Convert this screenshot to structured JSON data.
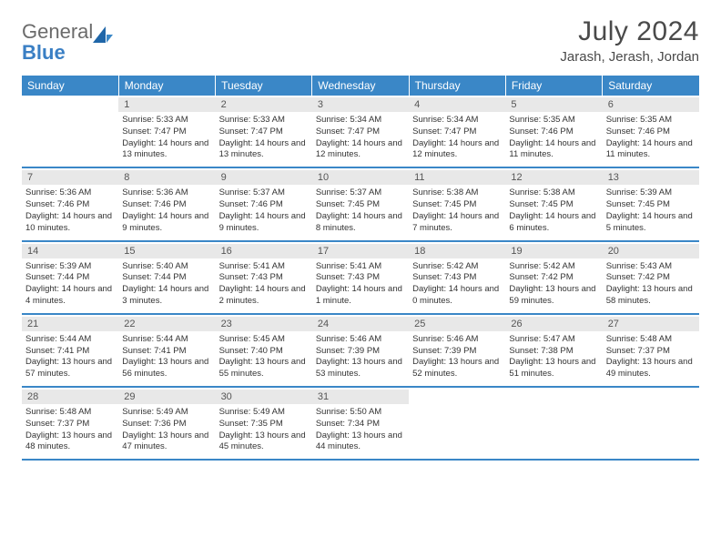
{
  "logo": {
    "textA": "General",
    "textB": "Blue"
  },
  "title": "July 2024",
  "location": "Jarash, Jerash, Jordan",
  "colors": {
    "header_bg": "#3a87c7",
    "daynum_bg": "#e8e8e8",
    "divider": "#3a87c7",
    "logo_gray": "#6b6b6b",
    "logo_blue": "#3a7fc4"
  },
  "weekdays": [
    "Sunday",
    "Monday",
    "Tuesday",
    "Wednesday",
    "Thursday",
    "Friday",
    "Saturday"
  ],
  "weeks": [
    [
      {
        "day": "",
        "sunrise": "",
        "sunset": "",
        "daylight": ""
      },
      {
        "day": "1",
        "sunrise": "Sunrise: 5:33 AM",
        "sunset": "Sunset: 7:47 PM",
        "daylight": "Daylight: 14 hours and 13 minutes."
      },
      {
        "day": "2",
        "sunrise": "Sunrise: 5:33 AM",
        "sunset": "Sunset: 7:47 PM",
        "daylight": "Daylight: 14 hours and 13 minutes."
      },
      {
        "day": "3",
        "sunrise": "Sunrise: 5:34 AM",
        "sunset": "Sunset: 7:47 PM",
        "daylight": "Daylight: 14 hours and 12 minutes."
      },
      {
        "day": "4",
        "sunrise": "Sunrise: 5:34 AM",
        "sunset": "Sunset: 7:47 PM",
        "daylight": "Daylight: 14 hours and 12 minutes."
      },
      {
        "day": "5",
        "sunrise": "Sunrise: 5:35 AM",
        "sunset": "Sunset: 7:46 PM",
        "daylight": "Daylight: 14 hours and 11 minutes."
      },
      {
        "day": "6",
        "sunrise": "Sunrise: 5:35 AM",
        "sunset": "Sunset: 7:46 PM",
        "daylight": "Daylight: 14 hours and 11 minutes."
      }
    ],
    [
      {
        "day": "7",
        "sunrise": "Sunrise: 5:36 AM",
        "sunset": "Sunset: 7:46 PM",
        "daylight": "Daylight: 14 hours and 10 minutes."
      },
      {
        "day": "8",
        "sunrise": "Sunrise: 5:36 AM",
        "sunset": "Sunset: 7:46 PM",
        "daylight": "Daylight: 14 hours and 9 minutes."
      },
      {
        "day": "9",
        "sunrise": "Sunrise: 5:37 AM",
        "sunset": "Sunset: 7:46 PM",
        "daylight": "Daylight: 14 hours and 9 minutes."
      },
      {
        "day": "10",
        "sunrise": "Sunrise: 5:37 AM",
        "sunset": "Sunset: 7:45 PM",
        "daylight": "Daylight: 14 hours and 8 minutes."
      },
      {
        "day": "11",
        "sunrise": "Sunrise: 5:38 AM",
        "sunset": "Sunset: 7:45 PM",
        "daylight": "Daylight: 14 hours and 7 minutes."
      },
      {
        "day": "12",
        "sunrise": "Sunrise: 5:38 AM",
        "sunset": "Sunset: 7:45 PM",
        "daylight": "Daylight: 14 hours and 6 minutes."
      },
      {
        "day": "13",
        "sunrise": "Sunrise: 5:39 AM",
        "sunset": "Sunset: 7:45 PM",
        "daylight": "Daylight: 14 hours and 5 minutes."
      }
    ],
    [
      {
        "day": "14",
        "sunrise": "Sunrise: 5:39 AM",
        "sunset": "Sunset: 7:44 PM",
        "daylight": "Daylight: 14 hours and 4 minutes."
      },
      {
        "day": "15",
        "sunrise": "Sunrise: 5:40 AM",
        "sunset": "Sunset: 7:44 PM",
        "daylight": "Daylight: 14 hours and 3 minutes."
      },
      {
        "day": "16",
        "sunrise": "Sunrise: 5:41 AM",
        "sunset": "Sunset: 7:43 PM",
        "daylight": "Daylight: 14 hours and 2 minutes."
      },
      {
        "day": "17",
        "sunrise": "Sunrise: 5:41 AM",
        "sunset": "Sunset: 7:43 PM",
        "daylight": "Daylight: 14 hours and 1 minute."
      },
      {
        "day": "18",
        "sunrise": "Sunrise: 5:42 AM",
        "sunset": "Sunset: 7:43 PM",
        "daylight": "Daylight: 14 hours and 0 minutes."
      },
      {
        "day": "19",
        "sunrise": "Sunrise: 5:42 AM",
        "sunset": "Sunset: 7:42 PM",
        "daylight": "Daylight: 13 hours and 59 minutes."
      },
      {
        "day": "20",
        "sunrise": "Sunrise: 5:43 AM",
        "sunset": "Sunset: 7:42 PM",
        "daylight": "Daylight: 13 hours and 58 minutes."
      }
    ],
    [
      {
        "day": "21",
        "sunrise": "Sunrise: 5:44 AM",
        "sunset": "Sunset: 7:41 PM",
        "daylight": "Daylight: 13 hours and 57 minutes."
      },
      {
        "day": "22",
        "sunrise": "Sunrise: 5:44 AM",
        "sunset": "Sunset: 7:41 PM",
        "daylight": "Daylight: 13 hours and 56 minutes."
      },
      {
        "day": "23",
        "sunrise": "Sunrise: 5:45 AM",
        "sunset": "Sunset: 7:40 PM",
        "daylight": "Daylight: 13 hours and 55 minutes."
      },
      {
        "day": "24",
        "sunrise": "Sunrise: 5:46 AM",
        "sunset": "Sunset: 7:39 PM",
        "daylight": "Daylight: 13 hours and 53 minutes."
      },
      {
        "day": "25",
        "sunrise": "Sunrise: 5:46 AM",
        "sunset": "Sunset: 7:39 PM",
        "daylight": "Daylight: 13 hours and 52 minutes."
      },
      {
        "day": "26",
        "sunrise": "Sunrise: 5:47 AM",
        "sunset": "Sunset: 7:38 PM",
        "daylight": "Daylight: 13 hours and 51 minutes."
      },
      {
        "day": "27",
        "sunrise": "Sunrise: 5:48 AM",
        "sunset": "Sunset: 7:37 PM",
        "daylight": "Daylight: 13 hours and 49 minutes."
      }
    ],
    [
      {
        "day": "28",
        "sunrise": "Sunrise: 5:48 AM",
        "sunset": "Sunset: 7:37 PM",
        "daylight": "Daylight: 13 hours and 48 minutes."
      },
      {
        "day": "29",
        "sunrise": "Sunrise: 5:49 AM",
        "sunset": "Sunset: 7:36 PM",
        "daylight": "Daylight: 13 hours and 47 minutes."
      },
      {
        "day": "30",
        "sunrise": "Sunrise: 5:49 AM",
        "sunset": "Sunset: 7:35 PM",
        "daylight": "Daylight: 13 hours and 45 minutes."
      },
      {
        "day": "31",
        "sunrise": "Sunrise: 5:50 AM",
        "sunset": "Sunset: 7:34 PM",
        "daylight": "Daylight: 13 hours and 44 minutes."
      },
      {
        "day": "",
        "sunrise": "",
        "sunset": "",
        "daylight": ""
      },
      {
        "day": "",
        "sunrise": "",
        "sunset": "",
        "daylight": ""
      },
      {
        "day": "",
        "sunrise": "",
        "sunset": "",
        "daylight": ""
      }
    ]
  ]
}
